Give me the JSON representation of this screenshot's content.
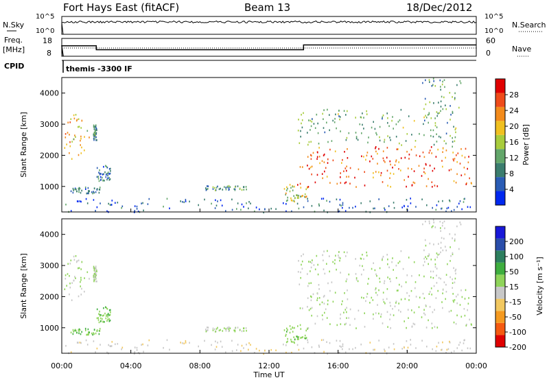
{
  "header": {
    "station": "Fort Hays East (fitACF)",
    "beam": "Beam 13",
    "date": "18/Dec/2012"
  },
  "noise_panel": {
    "left_label": "N.Sky",
    "right_label": "N.Search",
    "left_ticks": [
      "10^5",
      "10^0"
    ],
    "right_ticks": [
      "10^5",
      "10^0"
    ]
  },
  "freq_panel": {
    "left_label_line1": "Freq.",
    "left_label_line2": "[MHz]",
    "left_ticks": [
      "18",
      "8"
    ],
    "right_label": "Nave",
    "right_ticks": [
      "60",
      "0"
    ]
  },
  "cpid_panel": {
    "label": "CPID",
    "value": "themis -3300 IF"
  },
  "power_panel": {
    "ylabel": "Slant Range [km]",
    "yticks": [
      "1000",
      "2000",
      "3000",
      "4000"
    ],
    "colorbar_label": "Power [dB]",
    "colorbar_ticks": [
      "4",
      "8",
      "12",
      "16",
      "20",
      "24",
      "28"
    ]
  },
  "velocity_panel": {
    "ylabel": "Slant Range [km]",
    "yticks": [
      "1000",
      "2000",
      "3000",
      "4000"
    ],
    "colorbar_label": "Velocity [m s⁻¹]",
    "colorbar_ticks": [
      "200",
      "100",
      "50",
      "15",
      "-15",
      "-50",
      "-100",
      "-200"
    ]
  },
  "x_axis": {
    "label": "Time UT",
    "ticks": [
      "00:00",
      "04:00",
      "08:00",
      "12:00",
      "16:00",
      "20:00",
      "00:00"
    ]
  },
  "chart_data": {
    "type": "heatmap",
    "x_range_hours": [
      0,
      24
    ],
    "y_range_km": [
      180,
      4500
    ],
    "power_colorbar": {
      "min_db": 0,
      "max_db": 32,
      "colors": [
        "#0028f0",
        "#2a5cb5",
        "#3b7d6e",
        "#63a66a",
        "#a8cc3c",
        "#f0c020",
        "#f38b1c",
        "#ef4b1a",
        "#e00000"
      ]
    },
    "velocity_colorbar": {
      "min": -250,
      "max": 250,
      "colors": [
        "#e00000",
        "#f55a10",
        "#f59a20",
        "#f2c860",
        "#c8c8c8",
        "#8fd45a",
        "#3fae3f",
        "#2d7f5f",
        "#2a4eaa",
        "#1818d8"
      ]
    },
    "scatter_regions": [
      {
        "t0": 0.0,
        "t1": 1.6,
        "r0": 1900,
        "r1": 3400,
        "power": 20,
        "vel": 0
      },
      {
        "t0": 1.8,
        "t1": 2.0,
        "r0": 2500,
        "r1": 3000,
        "power": 10,
        "vel": 0
      },
      {
        "t0": 2.0,
        "t1": 2.8,
        "r0": 1200,
        "r1": 1700,
        "power": 8,
        "vel": 40
      },
      {
        "t0": 0.5,
        "t1": 2.2,
        "r0": 800,
        "r1": 1000,
        "power": 8,
        "vel": 40
      },
      {
        "t0": 8.3,
        "t1": 10.8,
        "r0": 900,
        "r1": 1050,
        "power": 10,
        "vel": 5
      },
      {
        "t0": 0.0,
        "t1": 24.0,
        "r0": 190,
        "r1": 650,
        "power": 6,
        "vel": -35
      },
      {
        "t0": 12.8,
        "t1": 14.2,
        "r0": 500,
        "r1": 1100,
        "power": 16,
        "vel": 30
      },
      {
        "t0": 13.6,
        "t1": 23.8,
        "r0": 1000,
        "r1": 2300,
        "power": 26,
        "vel": 0
      },
      {
        "t0": 13.6,
        "t1": 23.0,
        "r0": 2300,
        "r1": 3500,
        "power": 12,
        "vel": 0
      },
      {
        "t0": 20.8,
        "t1": 23.2,
        "r0": 3500,
        "r1": 4500,
        "power": 12,
        "vel": -20
      }
    ],
    "nave_steps": [
      {
        "t0": 0.0,
        "t1": 2.0,
        "nave": 35
      },
      {
        "t0": 2.0,
        "t1": 14.0,
        "nave": 22
      },
      {
        "t0": 14.0,
        "t1": 24.0,
        "nave": 38
      }
    ]
  }
}
